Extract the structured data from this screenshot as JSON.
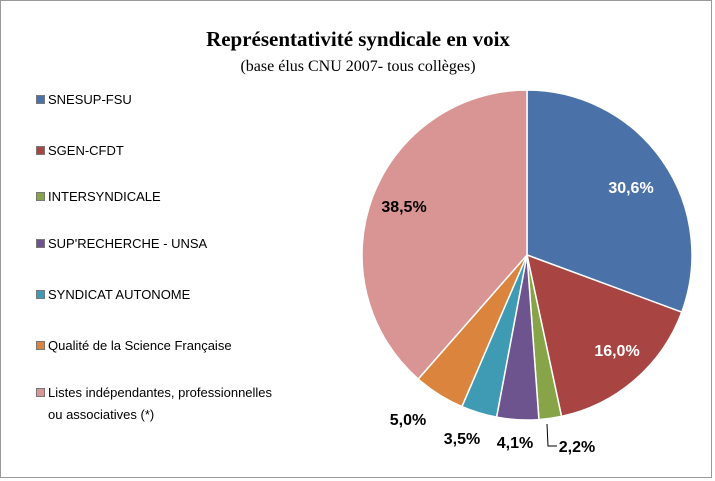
{
  "chart_data": {
    "type": "pie",
    "title": "Représentativité syndicale en voix",
    "subtitle": "(base élus CNU 2007- tous collèges)",
    "categories": [
      "SNESUP-FSU",
      "SGEN-CFDT",
      "INTERSYNDICALE",
      "SUP'RECHERCHE - UNSA",
      "SYNDICAT AUTONOME",
      "Qualité de la Science Française",
      "Listes indépendantes, professionnelles ou associatives (*)"
    ],
    "values": [
      30.6,
      16.0,
      2.2,
      4.1,
      3.5,
      5.0,
      38.5
    ],
    "value_labels": [
      "30,6%",
      "16,0%",
      "2,2%",
      "4,1%",
      "3,5%",
      "5,0%",
      "38,5%"
    ],
    "colors": [
      "#4a72a8",
      "#a84442",
      "#87a548",
      "#6e548e",
      "#3f9bb3",
      "#db843d",
      "#d99594"
    ],
    "legend": "left"
  }
}
